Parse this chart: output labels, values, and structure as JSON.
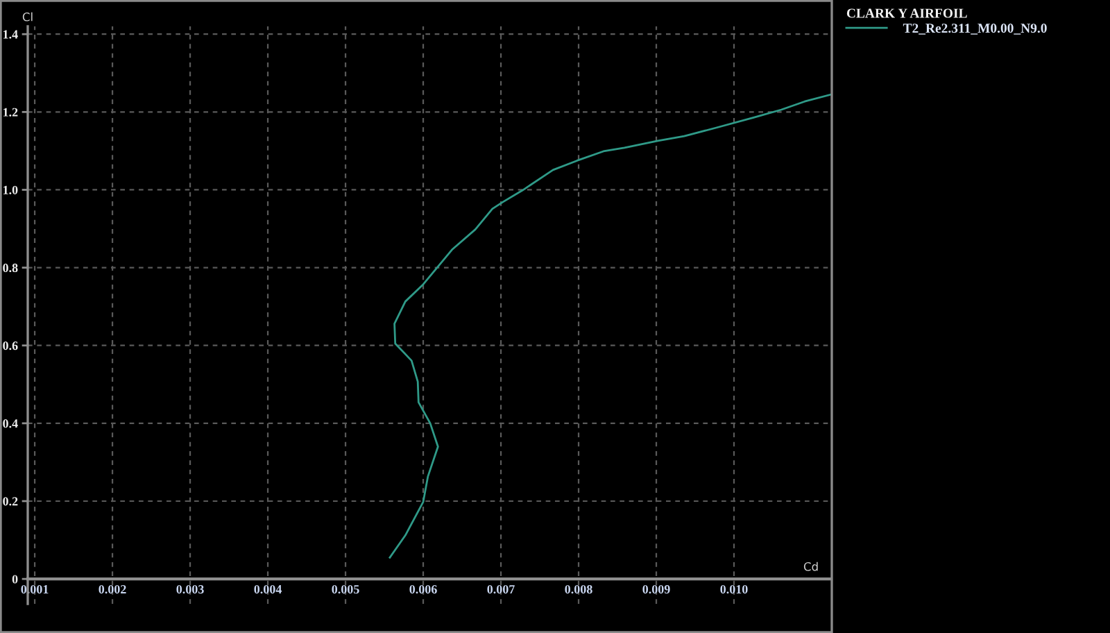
{
  "chart_data": {
    "type": "line",
    "xlabel": "Cd",
    "ylabel": "Cl",
    "legend_title": "CLARK Y AIRFOIL",
    "x": [
      0.00557,
      0.00577,
      0.006,
      0.00606,
      0.00619,
      0.00609,
      0.00594,
      0.00593,
      0.00585,
      0.00564,
      0.00563,
      0.00577,
      0.006,
      0.00637,
      0.00667,
      0.00689,
      0.00702,
      0.00728,
      0.00767,
      0.00798,
      0.00832,
      0.00859,
      0.00902,
      0.00936,
      0.00978,
      0.01026,
      0.01061,
      0.01091,
      0.01125
    ],
    "series": [
      {
        "name": "T2_Re2.311_M0.00_N9.0",
        "color": "#2f9a88",
        "values": [
          0.055,
          0.112,
          0.198,
          0.263,
          0.34,
          0.4,
          0.454,
          0.507,
          0.561,
          0.605,
          0.656,
          0.713,
          0.757,
          0.846,
          0.898,
          0.951,
          0.968,
          0.999,
          1.051,
          1.075,
          1.099,
          1.108,
          1.126,
          1.138,
          1.16,
          1.186,
          1.206,
          1.227,
          1.245
        ]
      }
    ],
    "xlim": [
      0.00091,
      0.01125
    ],
    "ylim": [
      -0.064,
      1.42
    ],
    "xticks": [
      0.001,
      0.002,
      0.003,
      0.004,
      0.005,
      0.006,
      0.007,
      0.008,
      0.009,
      {
        "value": 0.01,
        "label": "0.010"
      }
    ],
    "yticks": [
      0,
      0.2,
      0.4,
      0.6,
      0.8,
      {
        "value": 1,
        "label": "1.0"
      },
      1.2,
      1.4
    ],
    "grid": true,
    "legend": "top right"
  }
}
